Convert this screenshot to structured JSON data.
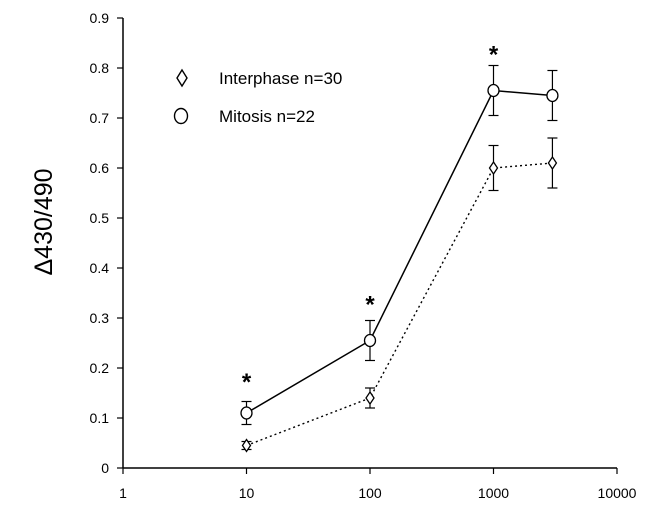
{
  "chart_data": {
    "type": "line",
    "title": "",
    "xlabel": "",
    "ylabel": "Δ430/490",
    "xscale": "log",
    "xlim": [
      1,
      10000
    ],
    "ylim": [
      0,
      0.9
    ],
    "xticks": [
      "1",
      "10",
      "100",
      "1000",
      "10000"
    ],
    "yticks": [
      "0",
      "0.1",
      "0.2",
      "0.3",
      "0.4",
      "0.5",
      "0.6",
      "0.7",
      "0.8",
      "0.9"
    ],
    "grid": false,
    "legend_position": "top-left",
    "series": [
      {
        "name": "Interphase n=30",
        "marker": "diamond",
        "line_style": "dotted",
        "color": "#000000",
        "x": [
          10,
          100,
          1000,
          3000
        ],
        "y": [
          0.045,
          0.14,
          0.6,
          0.61
        ],
        "error": [
          0.008,
          0.02,
          0.045,
          0.05
        ]
      },
      {
        "name": "Mitosis n=22",
        "marker": "circle",
        "line_style": "solid",
        "color": "#000000",
        "x": [
          10,
          100,
          1000,
          3000
        ],
        "y": [
          0.11,
          0.255,
          0.755,
          0.745
        ],
        "error": [
          0.023,
          0.04,
          0.05,
          0.05
        ]
      }
    ],
    "annotations": [
      {
        "text": "*",
        "x": 10,
        "y": 0.18
      },
      {
        "text": "*",
        "x": 100,
        "y": 0.335
      },
      {
        "text": "*",
        "x": 1000,
        "y": 0.835
      }
    ]
  }
}
